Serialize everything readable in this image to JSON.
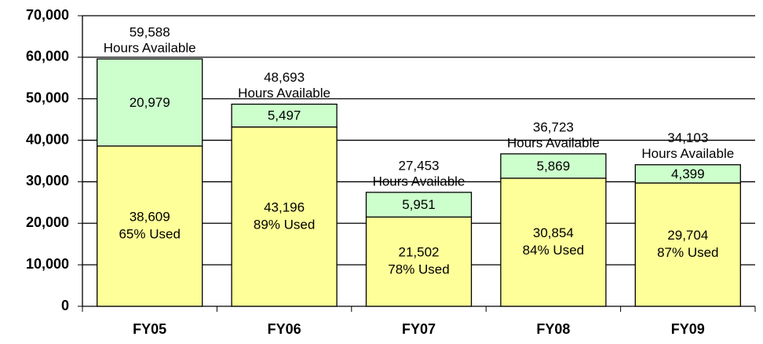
{
  "chart_data": {
    "type": "bar",
    "stacked": true,
    "categories": [
      "FY05",
      "FY06",
      "FY07",
      "FY08",
      "FY09"
    ],
    "series": [
      {
        "color": "#ffff99",
        "values": [
          38609,
          43196,
          21502,
          30854,
          29704
        ],
        "value_labels": [
          "38,609",
          "43,196",
          "21,502",
          "30,854",
          "29,704"
        ],
        "percent_labels": [
          "65% Used",
          "89% Used",
          "78% Used",
          "84% Used",
          "87% Used"
        ]
      },
      {
        "color": "#ccffcc",
        "values": [
          20979,
          5497,
          5951,
          5869,
          4399
        ],
        "value_labels": [
          "20,979",
          "5,497",
          "5,951",
          "5,869",
          "4,399"
        ]
      }
    ],
    "totals": [
      59588,
      48693,
      27453,
      36723,
      34103
    ],
    "total_labels": [
      "59,588",
      "48,693",
      "27,453",
      "36,723",
      "34,103"
    ],
    "total_notes": [
      "Hours Available",
      "Hours Available",
      "Hours Available",
      "Hours Available",
      "Hours Available"
    ],
    "ylim": [
      0,
      70000
    ],
    "yticks": [
      0,
      {
        "value": 10000,
        "label": "10,000"
      },
      {
        "value": 20000,
        "label": "20,000"
      },
      {
        "value": 30000,
        "label": "30,000"
      },
      {
        "value": 40000,
        "label": "40,000"
      },
      {
        "value": 50000,
        "label": "50,000"
      },
      {
        "value": 60000,
        "label": "60,000"
      },
      {
        "value": 70000,
        "label": "70,000"
      }
    ],
    "grid": true
  }
}
